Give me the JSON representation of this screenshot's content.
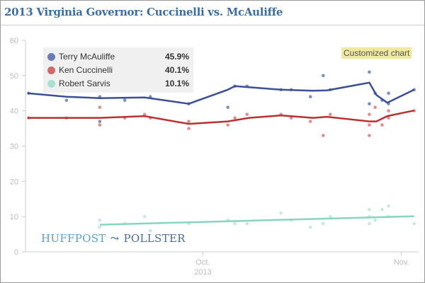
{
  "title": "2013 Virginia Governor: Cuccinelli vs. McAuliffe",
  "badge": "Customized chart",
  "logo": {
    "left": "HUFFPOST",
    "right": "POLLSTER"
  },
  "chart_data": {
    "type": "line",
    "title": "2013 Virginia Governor: Cuccinelli vs. McAuliffe",
    "x_unit": "days relative to Oct. 1, 2013",
    "xlim": [
      -27.7,
      33.7
    ],
    "ylim": [
      0,
      60
    ],
    "yticks": [
      0,
      10,
      20,
      30,
      40,
      50,
      60
    ],
    "xticks": [
      {
        "day": 0,
        "label": "Oct.",
        "sublabel": "2013"
      },
      {
        "day": 31,
        "label": "Nov.",
        "sublabel": ""
      }
    ],
    "legend_placement": "top-left",
    "series": [
      {
        "name": "Terry McAuliffe",
        "latest": "45.9%",
        "color": "#3b4f96",
        "dot_color": "#6a7bb5",
        "trend": [
          [
            -27.4,
            45
          ],
          [
            -21.3,
            44
          ],
          [
            -16.1,
            43.6
          ],
          [
            -9.1,
            43.8
          ],
          [
            -2.2,
            42
          ],
          [
            3.9,
            46
          ],
          [
            5,
            47
          ],
          [
            12.2,
            46
          ],
          [
            17.2,
            45.7
          ],
          [
            19.4,
            45.8
          ],
          [
            26,
            48
          ],
          [
            27.1,
            44.5
          ],
          [
            28.8,
            42.3
          ],
          [
            33,
            46
          ]
        ],
        "polls": [
          [
            -27.2,
            45
          ],
          [
            -21.3,
            43
          ],
          [
            -16.1,
            44
          ],
          [
            -16.1,
            37
          ],
          [
            -12.2,
            43
          ],
          [
            -9.1,
            47
          ],
          [
            -8.2,
            44
          ],
          [
            -2.2,
            42
          ],
          [
            3.9,
            41
          ],
          [
            5,
            47
          ],
          [
            6.9,
            47
          ],
          [
            12.2,
            46
          ],
          [
            13.8,
            46
          ],
          [
            16.8,
            44
          ],
          [
            18.8,
            50
          ],
          [
            19.9,
            46
          ],
          [
            26,
            51
          ],
          [
            26,
            42
          ],
          [
            26.9,
            45
          ],
          [
            28,
            43
          ],
          [
            29,
            45
          ],
          [
            29,
            42
          ],
          [
            33,
            46
          ]
        ]
      },
      {
        "name": "Ken Cuccinelli",
        "latest": "40.1%",
        "color": "#b83232",
        "dot_color": "#d97a7a",
        "trend": [
          [
            -27.4,
            38
          ],
          [
            -21.3,
            38
          ],
          [
            -16.1,
            38
          ],
          [
            -9.1,
            38.5
          ],
          [
            -2.2,
            36.3
          ],
          [
            3.9,
            37
          ],
          [
            7.2,
            38
          ],
          [
            12.2,
            38.7
          ],
          [
            17.2,
            38
          ],
          [
            19.4,
            38.3
          ],
          [
            26,
            37
          ],
          [
            27.1,
            37
          ],
          [
            28.8,
            38.5
          ],
          [
            33,
            40.1
          ]
        ],
        "polls": [
          [
            -27.2,
            38
          ],
          [
            -21.3,
            38
          ],
          [
            -16.1,
            41
          ],
          [
            -16.1,
            36
          ],
          [
            -12.2,
            38
          ],
          [
            -9.1,
            39
          ],
          [
            -8.2,
            38
          ],
          [
            -2.2,
            37
          ],
          [
            -2.2,
            35
          ],
          [
            3.9,
            36
          ],
          [
            5,
            38
          ],
          [
            6.9,
            39
          ],
          [
            12.2,
            39
          ],
          [
            13.8,
            38
          ],
          [
            16.8,
            37
          ],
          [
            18.8,
            33
          ],
          [
            19.9,
            39
          ],
          [
            26,
            39
          ],
          [
            26,
            33
          ],
          [
            26,
            36
          ],
          [
            26.9,
            41
          ],
          [
            28,
            36
          ],
          [
            29,
            40
          ],
          [
            29,
            38
          ],
          [
            33,
            40
          ]
        ]
      },
      {
        "name": "Robert Sarvis",
        "latest": "10.1%",
        "color": "#88d4c0",
        "dot_color": "#b8e6da",
        "trend": [
          [
            -16.1,
            7.7
          ],
          [
            33,
            10.1
          ]
        ],
        "polls": [
          [
            -16.1,
            9
          ],
          [
            -16.1,
            7
          ],
          [
            -12.2,
            8
          ],
          [
            -9.1,
            10
          ],
          [
            -8.2,
            6
          ],
          [
            -2.2,
            8
          ],
          [
            3.9,
            9
          ],
          [
            5,
            8
          ],
          [
            6.9,
            8
          ],
          [
            12.2,
            11
          ],
          [
            13.8,
            9
          ],
          [
            16.8,
            7
          ],
          [
            18.8,
            8
          ],
          [
            19.9,
            10
          ],
          [
            26,
            12
          ],
          [
            26,
            10
          ],
          [
            26,
            8
          ],
          [
            26.9,
            9
          ],
          [
            28,
            12
          ],
          [
            29,
            13
          ],
          [
            29,
            10
          ],
          [
            33,
            8
          ]
        ]
      }
    ]
  }
}
